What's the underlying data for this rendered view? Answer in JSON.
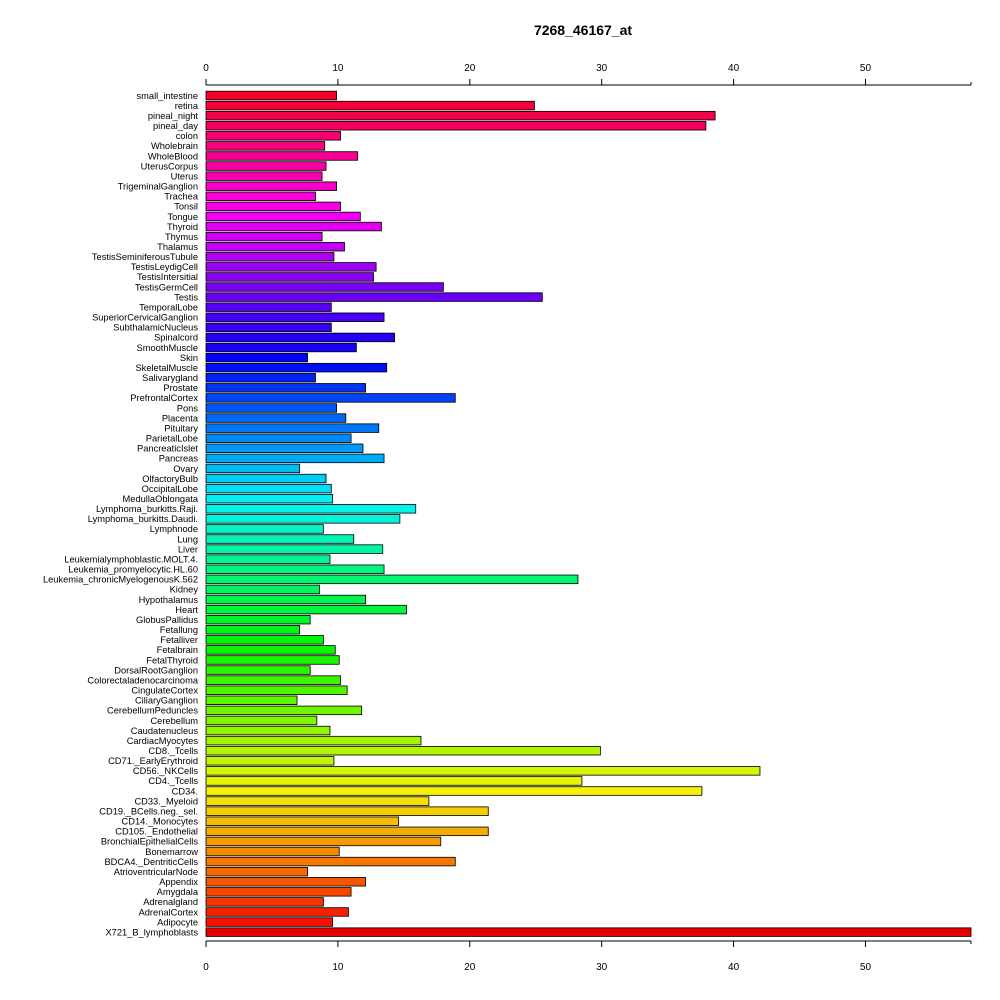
{
  "chart_data": {
    "type": "bar",
    "orientation": "horizontal",
    "title": "7268_46167_at",
    "xlabel": "",
    "ylabel": "",
    "xlim": [
      0,
      58
    ],
    "x_ticks": [
      0,
      10,
      20,
      30,
      40,
      50
    ],
    "grid": false,
    "legend": "none",
    "categories": [
      "small_intestine",
      "retina",
      "pineal_night",
      "pineal_day",
      "colon",
      "Wholebrain",
      "WholeBlood",
      "UterusCorpus",
      "Uterus",
      "TrigeminalGanglion",
      "Trachea",
      "Tonsil",
      "Tongue",
      "Thyroid",
      "Thymus",
      "Thalamus",
      "TestisSeminiferousTubule",
      "TestisLeydigCell",
      "TestisIntersitial",
      "TestisGermCell",
      "Testis",
      "TemporalLobe",
      "SuperiorCervicalGanglion",
      "SubthalamicNucleus",
      "Spinalcord",
      "SmoothMuscle",
      "Skin",
      "SkeletalMuscle",
      "Salivarygland",
      "Prostate",
      "PrefrontalCortex",
      "Pons",
      "Placenta",
      "Pituitary",
      "ParietalLobe",
      "PancreaticIslet",
      "Pancreas",
      "Ovary",
      "OlfactoryBulb",
      "OccipitalLobe",
      "MedullaOblongata",
      "Lymphoma_burkitts.Raji.",
      "Lymphoma_burkitts.Daudi.",
      "Lymphnode",
      "Lung",
      "Liver",
      "Leukemialymphoblastic.MOLT.4.",
      "Leukemia_promyelocytic.HL.60",
      "Leukemia_chronicMyelogenousK.562",
      "Kidney",
      "Hypothalamus",
      "Heart",
      "GlobusPallidus",
      "Fetallung",
      "Fetalliver",
      "Fetalbrain",
      "FetalThyroid",
      "DorsalRootGanglion",
      "Colorectaladenocarcinoma",
      "CingulateCortex",
      "CiliaryGanglion",
      "CerebellumPeduncles",
      "Cerebellum",
      "Caudatenucleus",
      "CardiacMyocytes",
      "CD8._Tcells",
      "CD71._EarlyErythroid",
      "CD56._NKCells",
      "CD4._Tcells",
      "CD34.",
      "CD33._Myeloid",
      "CD19._BCells.neg._sel.",
      "CD14._Monocytes",
      "CD105._Endothelial",
      "BronchialEpithelialCells",
      "Bonemarrow",
      "BDCA4._DentriticCells",
      "AtrioventricularNode",
      "Appendix",
      "Amygdala",
      "Adrenalgland",
      "AdrenalCortex",
      "Adipocyte",
      "X721_B_lymphoblasts"
    ],
    "values": [
      9.9,
      24.9,
      38.6,
      37.9,
      10.2,
      9.0,
      11.5,
      9.1,
      8.8,
      9.9,
      8.3,
      10.2,
      11.7,
      13.3,
      8.8,
      10.5,
      9.7,
      12.9,
      12.7,
      18.0,
      25.5,
      9.5,
      13.5,
      9.5,
      14.3,
      11.4,
      7.7,
      13.7,
      8.3,
      12.1,
      18.9,
      9.9,
      10.6,
      13.1,
      11.0,
      11.9,
      13.5,
      7.1,
      9.1,
      9.5,
      9.6,
      15.9,
      14.7,
      8.9,
      11.2,
      13.4,
      9.4,
      13.5,
      28.2,
      8.6,
      12.1,
      15.2,
      7.9,
      7.1,
      8.9,
      9.8,
      10.1,
      7.9,
      10.2,
      10.7,
      6.9,
      11.8,
      8.4,
      9.4,
      16.3,
      29.9,
      9.7,
      42.0,
      28.5,
      37.6,
      16.9,
      21.4,
      14.6,
      21.4,
      17.8,
      10.1,
      18.9,
      7.7,
      12.1,
      11.0,
      8.9,
      10.8,
      9.6,
      58.0
    ]
  }
}
